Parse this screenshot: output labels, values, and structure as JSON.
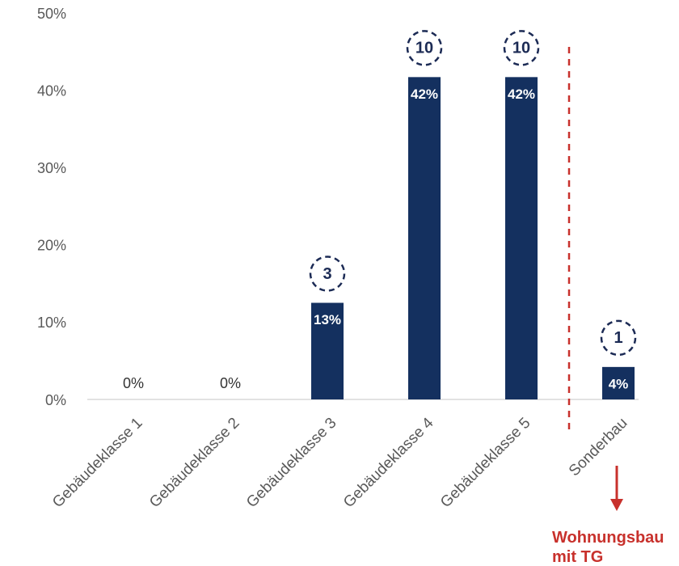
{
  "chart_data": {
    "type": "bar",
    "title": "",
    "xlabel": "",
    "ylabel": "",
    "categories": [
      "Gebäudeklasse 1",
      "Gebäudeklasse 2",
      "Gebäudeklasse 3",
      "Gebäudeklasse 4",
      "Gebäudeklasse 5",
      "Sonderbau"
    ],
    "values": [
      0,
      0,
      12.5,
      41.7,
      41.7,
      4.2
    ],
    "value_labels": [
      "0%",
      "0%",
      "13%",
      "42%",
      "42%",
      "4%"
    ],
    "counts": [
      null,
      null,
      3,
      10,
      10,
      1
    ],
    "ylim": [
      0,
      50
    ],
    "yticks": [
      0,
      10,
      20,
      30,
      40,
      50
    ],
    "ytick_labels": [
      "0%",
      "10%",
      "20%",
      "30%",
      "40%",
      "50%"
    ],
    "grid": false,
    "legend": "none"
  },
  "annotation": {
    "line1": "Wohnungsbau",
    "line2": "mit TG"
  },
  "colors": {
    "bar": "#14305f",
    "count_circle": "#1c2b55",
    "accent": "#c8312c",
    "axis": "#d9d9d9",
    "tick_text": "#595959"
  }
}
